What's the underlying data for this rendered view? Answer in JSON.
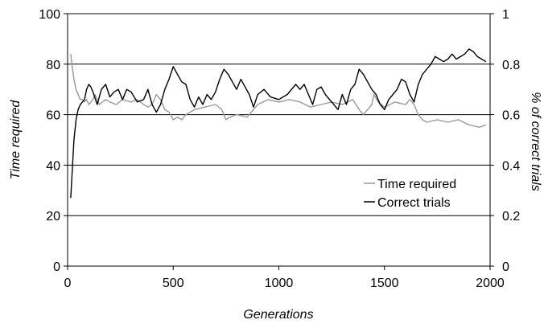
{
  "chart_data": {
    "type": "line",
    "xlabel": "Generations",
    "ylabel_left": "Time required",
    "ylabel_right": "% of correct trials",
    "xlim": [
      0,
      2000
    ],
    "ylim_left": [
      0,
      100
    ],
    "ylim_right": [
      0,
      1
    ],
    "x_ticks": [
      "0",
      "500",
      "1000",
      "1500",
      "2000"
    ],
    "y_left_ticks": [
      "0",
      "20",
      "40",
      "60",
      "80",
      "100"
    ],
    "y_right_ticks": [
      "0",
      "0.2",
      "0.4",
      "0.6",
      "0.8",
      "1"
    ],
    "grid": "horizontal",
    "legend_position": "center-right",
    "series": [
      {
        "name": "Time required",
        "axis": "left",
        "color": "#999999",
        "x": [
          15,
          20,
          30,
          40,
          50,
          60,
          70,
          80,
          90,
          100,
          110,
          120,
          130,
          150,
          180,
          200,
          230,
          260,
          300,
          330,
          360,
          380,
          400,
          420,
          440,
          460,
          480,
          500,
          520,
          540,
          560,
          600,
          650,
          700,
          730,
          750,
          770,
          800,
          850,
          900,
          950,
          1000,
          1050,
          1100,
          1150,
          1200,
          1250,
          1300,
          1350,
          1380,
          1400,
          1420,
          1440,
          1450,
          1470,
          1500,
          1550,
          1600,
          1620,
          1640,
          1660,
          1680,
          1700,
          1750,
          1800,
          1850,
          1900,
          1950,
          1980
        ],
        "y": [
          84,
          80,
          74,
          70,
          68,
          66,
          66,
          65,
          66,
          64,
          65,
          66,
          68,
          64,
          66,
          65,
          64,
          66,
          65,
          66,
          64,
          63,
          64,
          68,
          66,
          62,
          61,
          58,
          59,
          58,
          60,
          62,
          63,
          64,
          62,
          58,
          59,
          60,
          59,
          64,
          66,
          65,
          66,
          65,
          63,
          64,
          65,
          64,
          66,
          62,
          60,
          62,
          64,
          68,
          65,
          63,
          65,
          64,
          66,
          64,
          60,
          58,
          57,
          58,
          57,
          58,
          56,
          55,
          56
        ]
      },
      {
        "name": "Correct trials",
        "axis": "right",
        "color": "#000000",
        "x": [
          15,
          20,
          30,
          40,
          50,
          60,
          70,
          80,
          90,
          100,
          110,
          120,
          140,
          160,
          180,
          200,
          220,
          240,
          260,
          280,
          300,
          330,
          360,
          380,
          400,
          420,
          440,
          460,
          480,
          500,
          520,
          540,
          560,
          580,
          600,
          620,
          640,
          660,
          680,
          700,
          720,
          740,
          760,
          780,
          800,
          820,
          840,
          860,
          880,
          900,
          930,
          960,
          1000,
          1040,
          1080,
          1100,
          1120,
          1140,
          1160,
          1180,
          1200,
          1220,
          1240,
          1260,
          1280,
          1300,
          1320,
          1340,
          1360,
          1380,
          1400,
          1420,
          1440,
          1460,
          1480,
          1500,
          1520,
          1540,
          1560,
          1580,
          1600,
          1620,
          1640,
          1660,
          1680,
          1700,
          1720,
          1740,
          1760,
          1780,
          1800,
          1820,
          1840,
          1860,
          1880,
          1900,
          1920,
          1940,
          1960,
          1980
        ],
        "y": [
          0.27,
          0.35,
          0.5,
          0.58,
          0.62,
          0.64,
          0.65,
          0.66,
          0.7,
          0.72,
          0.71,
          0.69,
          0.64,
          0.7,
          0.72,
          0.67,
          0.69,
          0.7,
          0.66,
          0.7,
          0.69,
          0.65,
          0.66,
          0.7,
          0.64,
          0.61,
          0.64,
          0.7,
          0.74,
          0.79,
          0.76,
          0.73,
          0.72,
          0.66,
          0.63,
          0.67,
          0.64,
          0.68,
          0.66,
          0.69,
          0.74,
          0.78,
          0.76,
          0.73,
          0.7,
          0.74,
          0.71,
          0.68,
          0.63,
          0.68,
          0.7,
          0.67,
          0.66,
          0.68,
          0.72,
          0.7,
          0.72,
          0.68,
          0.64,
          0.7,
          0.71,
          0.68,
          0.66,
          0.64,
          0.62,
          0.68,
          0.64,
          0.7,
          0.72,
          0.78,
          0.76,
          0.73,
          0.7,
          0.68,
          0.64,
          0.62,
          0.66,
          0.68,
          0.7,
          0.74,
          0.73,
          0.68,
          0.65,
          0.72,
          0.76,
          0.78,
          0.8,
          0.83,
          0.82,
          0.81,
          0.82,
          0.84,
          0.82,
          0.83,
          0.84,
          0.86,
          0.85,
          0.83,
          0.82,
          0.81
        ]
      }
    ]
  }
}
